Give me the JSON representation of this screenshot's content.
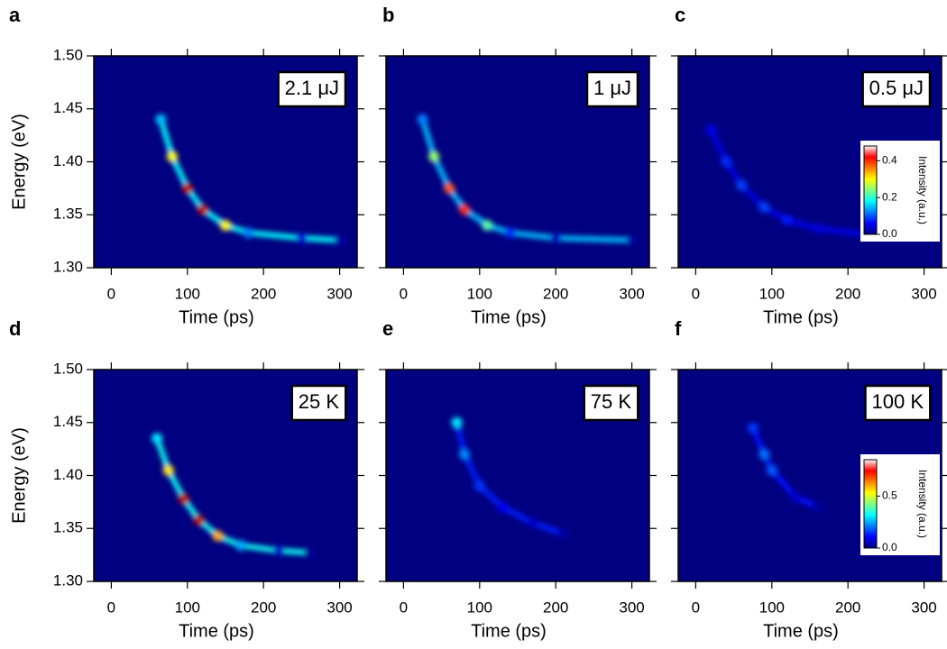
{
  "chart_data": [
    {
      "type": "heatmap",
      "panel": "a",
      "annotation": "2.1 μJ",
      "xlabel": "Time (ps)",
      "ylabel": "Energy (eV)",
      "xlim": [
        -23,
        323
      ],
      "ylim": [
        1.3,
        1.5
      ],
      "xticks": [
        0,
        100,
        200,
        300
      ],
      "yticks": [
        {
          "value": 1.3,
          "label": "1.30"
        },
        1.35,
        {
          "value": 1.4,
          "label": "1.40"
        },
        1.45,
        {
          "value": 1.5,
          "label": "1.50"
        }
      ],
      "clim": [
        0,
        0.48
      ],
      "x": [
        65,
        80,
        100,
        120,
        150,
        180,
        250,
        300
      ],
      "values": [
        1.44,
        1.405,
        1.375,
        1.355,
        1.34,
        1.333,
        1.328,
        1.326
      ],
      "intensity": [
        0.15,
        0.3,
        0.45,
        0.45,
        0.3,
        0.12,
        0.04,
        0.02
      ]
    },
    {
      "type": "heatmap",
      "panel": "b",
      "annotation": "1 μJ",
      "xlabel": "Time (ps)",
      "xlim": [
        -23,
        323
      ],
      "ylim": [
        1.3,
        1.5
      ],
      "xticks": [
        0,
        100,
        200,
        300
      ],
      "yticks": [
        1.3,
        1.35,
        1.4,
        1.45,
        1.5
      ],
      "clim": [
        0,
        0.48
      ],
      "x": [
        25,
        40,
        60,
        80,
        110,
        140,
        200,
        300
      ],
      "values": [
        1.44,
        1.405,
        1.375,
        1.355,
        1.34,
        1.333,
        1.328,
        1.326
      ],
      "intensity": [
        0.12,
        0.25,
        0.38,
        0.4,
        0.22,
        0.08,
        0.03,
        0.015
      ]
    },
    {
      "type": "heatmap",
      "panel": "c",
      "annotation": "0.5 μJ",
      "xlabel": "Time (ps)",
      "xlim": [
        -23,
        323
      ],
      "ylim": [
        1.3,
        1.5
      ],
      "xticks": [
        0,
        100,
        200,
        300
      ],
      "yticks": [
        1.3,
        1.35,
        1.4,
        1.45,
        1.5
      ],
      "colorbar": {
        "label": "Intensity (a.u.)",
        "lim": [
          0,
          0.48
        ],
        "ticks": [
          {
            "value": 0,
            "label": "0.0"
          },
          0.2,
          0.4
        ]
      },
      "x": [
        20,
        40,
        60,
        90,
        120,
        160,
        230
      ],
      "values": [
        1.43,
        1.4,
        1.378,
        1.357,
        1.345,
        1.337,
        1.331
      ],
      "intensity": [
        0.05,
        0.08,
        0.09,
        0.09,
        0.07,
        0.04,
        0.02
      ]
    },
    {
      "type": "heatmap",
      "panel": "d",
      "annotation": "25 K",
      "xlabel": "Time (ps)",
      "ylabel": "Energy (eV)",
      "xlim": [
        -23,
        323
      ],
      "ylim": [
        1.3,
        1.5
      ],
      "xticks": [
        0,
        100,
        200,
        300
      ],
      "yticks": [
        {
          "value": 1.3,
          "label": "1.30"
        },
        1.35,
        {
          "value": 1.4,
          "label": "1.40"
        },
        1.45,
        {
          "value": 1.5,
          "label": "1.50"
        }
      ],
      "clim": [
        0,
        0.85
      ],
      "x": [
        60,
        75,
        95,
        115,
        140,
        170,
        220,
        260
      ],
      "values": [
        1.435,
        1.405,
        1.378,
        1.358,
        1.343,
        1.334,
        1.329,
        1.327
      ],
      "intensity": [
        0.3,
        0.55,
        0.8,
        0.8,
        0.6,
        0.25,
        0.06,
        0.02
      ]
    },
    {
      "type": "heatmap",
      "panel": "e",
      "annotation": "75 K",
      "xlabel": "Time (ps)",
      "xlim": [
        -23,
        323
      ],
      "ylim": [
        1.3,
        1.5
      ],
      "xticks": [
        0,
        100,
        200,
        300
      ],
      "yticks": [
        1.3,
        1.35,
        1.4,
        1.45,
        1.5
      ],
      "clim": [
        0,
        0.85
      ],
      "x": [
        70,
        80,
        100,
        130,
        170,
        210
      ],
      "values": [
        1.45,
        1.42,
        1.39,
        1.37,
        1.355,
        1.345
      ],
      "intensity": [
        0.3,
        0.22,
        0.15,
        0.1,
        0.06,
        0.03
      ]
    },
    {
      "type": "heatmap",
      "panel": "f",
      "annotation": "100 K",
      "xlabel": "Time (ps)",
      "xlim": [
        -23,
        323
      ],
      "ylim": [
        1.3,
        1.5
      ],
      "xticks": [
        0,
        100,
        200,
        300
      ],
      "yticks": [
        1.3,
        1.35,
        1.4,
        1.45,
        1.5
      ],
      "colorbar": {
        "label": "Intensity (a.u.)",
        "lim": [
          0,
          0.85
        ],
        "ticks": [
          {
            "value": 0,
            "label": "0.0"
          },
          0.5
        ]
      },
      "x": [
        75,
        90,
        100,
        130,
        160
      ],
      "values": [
        1.445,
        1.42,
        1.405,
        1.38,
        1.37
      ],
      "intensity": [
        0.15,
        0.2,
        0.18,
        0.06,
        0.03
      ]
    }
  ]
}
